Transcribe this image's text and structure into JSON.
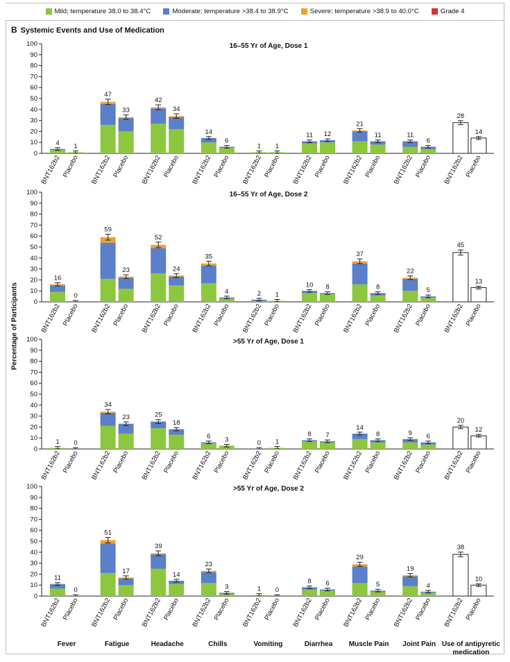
{
  "legend": {
    "items": [
      {
        "label": "Mild; temperature 38.0 to 38.4°C",
        "color": "#8dc63f"
      },
      {
        "label": "Moderate; temperature >38.4 to 38.9°C",
        "color": "#5b7fc9"
      },
      {
        "label": "Severe; temperature >38.9 to 40.0°C",
        "color": "#f0a030"
      },
      {
        "label": "Grade 4",
        "color": "#d6322e"
      }
    ]
  },
  "panel": {
    "letter": "B",
    "title": "Systemic Events and Use of Medication"
  },
  "ylabel": "Percentage of Participants",
  "chart_data": {
    "type": "bar",
    "stacked": true,
    "ylim": [
      0,
      100
    ],
    "yticks": [
      0,
      10,
      20,
      30,
      40,
      50,
      60,
      70,
      80,
      90,
      100
    ],
    "ylabel": "Percentage of Participants",
    "categories": [
      "Fever",
      "Fatigue",
      "Headache",
      "Chills",
      "Vomiting",
      "Diarrhea",
      "Muscle Pain",
      "Joint Pain",
      "Use of antipyretic medication"
    ],
    "groups": [
      "BNT162b2",
      "Placebo"
    ],
    "series_names": [
      "Mild; temperature 38.0 to 38.4°C",
      "Moderate; temperature >38.4 to 38.9°C",
      "Severe; temperature >38.9 to 40.0°C",
      "Grade 4"
    ],
    "series_colors": [
      "#8dc63f",
      "#5b7fc9",
      "#f0a030",
      "#d6322e"
    ],
    "panels": [
      {
        "title": "16–55 Yr of Age, Dose 1",
        "bars": [
          [
            {
              "total": 4,
              "segments": [
                3,
                1,
                0,
                0
              ]
            },
            {
              "total": 1,
              "segments": [
                1,
                0,
                0,
                0
              ]
            }
          ],
          [
            {
              "total": 47,
              "segments": [
                26,
                19,
                2,
                0
              ]
            },
            {
              "total": 33,
              "segments": [
                20,
                12,
                1,
                0
              ]
            }
          ],
          [
            {
              "total": 42,
              "segments": [
                27,
                14,
                1,
                0
              ]
            },
            {
              "total": 34,
              "segments": [
                22,
                11,
                1,
                0
              ]
            }
          ],
          [
            {
              "total": 14,
              "segments": [
                10,
                4,
                0,
                0
              ]
            },
            {
              "total": 6,
              "segments": [
                5,
                1,
                0,
                0
              ]
            }
          ],
          [
            {
              "total": 1,
              "segments": [
                1,
                0,
                0,
                0
              ]
            },
            {
              "total": 1,
              "segments": [
                1,
                0,
                0,
                0
              ]
            }
          ],
          [
            {
              "total": 11,
              "segments": [
                9,
                2,
                0,
                0
              ]
            },
            {
              "total": 12,
              "segments": [
                10,
                2,
                0,
                0
              ]
            }
          ],
          [
            {
              "total": 21,
              "segments": [
                11,
                9,
                1,
                0
              ]
            },
            {
              "total": 11,
              "segments": [
                8,
                3,
                0,
                0
              ]
            }
          ],
          [
            {
              "total": 11,
              "segments": [
                6,
                5,
                0,
                0
              ]
            },
            {
              "total": 6,
              "segments": [
                4,
                2,
                0,
                0
              ]
            }
          ],
          [
            {
              "total": 28,
              "segments": []
            },
            {
              "total": 14,
              "segments": []
            }
          ]
        ]
      },
      {
        "title": "16–55 Yr of Age, Dose 2",
        "bars": [
          [
            {
              "total": 16,
              "segments": [
                9,
                6,
                1,
                0
              ]
            },
            {
              "total": 0,
              "segments": [
                0,
                0,
                0,
                0
              ]
            }
          ],
          [
            {
              "total": 59,
              "segments": [
                21,
                33,
                5,
                0
              ]
            },
            {
              "total": 23,
              "segments": [
                12,
                10,
                1,
                0
              ]
            }
          ],
          [
            {
              "total": 52,
              "segments": [
                26,
                23,
                3,
                0
              ]
            },
            {
              "total": 24,
              "segments": [
                15,
                8,
                1,
                0
              ]
            }
          ],
          [
            {
              "total": 35,
              "segments": [
                17,
                16,
                2,
                0
              ]
            },
            {
              "total": 4,
              "segments": [
                3,
                1,
                0,
                0
              ]
            }
          ],
          [
            {
              "total": 2,
              "segments": [
                1,
                1,
                0,
                0
              ]
            },
            {
              "total": 1,
              "segments": [
                1,
                0,
                0,
                0
              ]
            }
          ],
          [
            {
              "total": 10,
              "segments": [
                8,
                2,
                0,
                0
              ]
            },
            {
              "total": 8,
              "segments": [
                7,
                1,
                0,
                0
              ]
            }
          ],
          [
            {
              "total": 37,
              "segments": [
                16,
                19,
                2,
                0
              ]
            },
            {
              "total": 8,
              "segments": [
                6,
                2,
                0,
                0
              ]
            }
          ],
          [
            {
              "total": 22,
              "segments": [
                10,
                11,
                1,
                0
              ]
            },
            {
              "total": 5,
              "segments": [
                4,
                1,
                0,
                0
              ]
            }
          ],
          [
            {
              "total": 45,
              "segments": []
            },
            {
              "total": 13,
              "segments": []
            }
          ]
        ]
      },
      {
        "title": ">55 Yr of Age, Dose 1",
        "bars": [
          [
            {
              "total": 1,
              "segments": [
                1,
                0,
                0,
                0
              ]
            },
            {
              "total": 0,
              "segments": [
                0,
                0,
                0,
                0
              ]
            }
          ],
          [
            {
              "total": 34,
              "segments": [
                21,
                12,
                1,
                0
              ]
            },
            {
              "total": 23,
              "segments": [
                14,
                9,
                0,
                0
              ]
            }
          ],
          [
            {
              "total": 25,
              "segments": [
                19,
                6,
                0,
                0
              ]
            },
            {
              "total": 18,
              "segments": [
                13,
                5,
                0,
                0
              ]
            }
          ],
          [
            {
              "total": 6,
              "segments": [
                5,
                1,
                0,
                0
              ]
            },
            {
              "total": 3,
              "segments": [
                3,
                0,
                0,
                0
              ]
            }
          ],
          [
            {
              "total": 0,
              "segments": [
                0,
                0,
                0,
                0
              ]
            },
            {
              "total": 1,
              "segments": [
                1,
                0,
                0,
                0
              ]
            }
          ],
          [
            {
              "total": 8,
              "segments": [
                7,
                1,
                0,
                0
              ]
            },
            {
              "total": 7,
              "segments": [
                6,
                1,
                0,
                0
              ]
            }
          ],
          [
            {
              "total": 14,
              "segments": [
                9,
                5,
                0,
                0
              ]
            },
            {
              "total": 8,
              "segments": [
                6,
                2,
                0,
                0
              ]
            }
          ],
          [
            {
              "total": 9,
              "segments": [
                6,
                3,
                0,
                0
              ]
            },
            {
              "total": 6,
              "segments": [
                4,
                2,
                0,
                0
              ]
            }
          ],
          [
            {
              "total": 20,
              "segments": []
            },
            {
              "total": 12,
              "segments": []
            }
          ]
        ]
      },
      {
        "title": ">55 Yr of Age, Dose 2",
        "bars": [
          [
            {
              "total": 11,
              "segments": [
                7,
                4,
                0,
                0
              ]
            },
            {
              "total": 0,
              "segments": [
                0,
                0,
                0,
                0
              ]
            }
          ],
          [
            {
              "total": 51,
              "segments": [
                21,
                27,
                3,
                0
              ]
            },
            {
              "total": 17,
              "segments": [
                10,
                6,
                1,
                0
              ]
            }
          ],
          [
            {
              "total": 39,
              "segments": [
                25,
                13,
                1,
                0
              ]
            },
            {
              "total": 14,
              "segments": [
                11,
                3,
                0,
                0
              ]
            }
          ],
          [
            {
              "total": 23,
              "segments": [
                12,
                10,
                1,
                0
              ]
            },
            {
              "total": 3,
              "segments": [
                2,
                1,
                0,
                0
              ]
            }
          ],
          [
            {
              "total": 1,
              "segments": [
                1,
                0,
                0,
                0
              ]
            },
            {
              "total": 0,
              "segments": [
                0,
                0,
                0,
                0
              ]
            }
          ],
          [
            {
              "total": 8,
              "segments": [
                6,
                2,
                0,
                0
              ]
            },
            {
              "total": 6,
              "segments": [
                5,
                1,
                0,
                0
              ]
            }
          ],
          [
            {
              "total": 29,
              "segments": [
                12,
                15,
                2,
                0
              ]
            },
            {
              "total": 5,
              "segments": [
                4,
                1,
                0,
                0
              ]
            }
          ],
          [
            {
              "total": 19,
              "segments": [
                9,
                9,
                1,
                0
              ]
            },
            {
              "total": 4,
              "segments": [
                3,
                1,
                0,
                0
              ]
            }
          ],
          [
            {
              "total": 38,
              "segments": []
            },
            {
              "total": 10,
              "segments": []
            }
          ]
        ]
      }
    ]
  }
}
